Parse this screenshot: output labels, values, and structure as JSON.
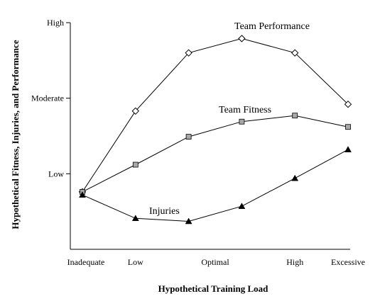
{
  "chart_data": {
    "type": "line",
    "title": "",
    "xlabel": "Hypothetical Training Load",
    "ylabel": "Hypothetical Fitness, Injuries, and Performance",
    "x_tick_labels": [
      "Inadequate",
      "Low",
      "Optimal",
      "High",
      "Excessive"
    ],
    "x_tick_positions": [
      0,
      1,
      2.5,
      4,
      5
    ],
    "y_tick_labels": [
      "Low",
      "Moderate",
      "High"
    ],
    "y_tick_positions": [
      1,
      2,
      3
    ],
    "xlim": [
      0,
      5
    ],
    "ylim": [
      0,
      3
    ],
    "grid": false,
    "legend": "none",
    "series": [
      {
        "name": "Team Performance",
        "marker": "open-diamond",
        "color": "#000000",
        "x": [
          0,
          1,
          2,
          3,
          4,
          5
        ],
        "y": [
          0.76,
          1.83,
          2.6,
          2.79,
          2.6,
          1.92
        ]
      },
      {
        "name": "Team Fitness",
        "marker": "gray-square",
        "color": "#000000",
        "x": [
          0,
          1,
          2,
          3,
          4,
          5
        ],
        "y": [
          0.76,
          1.12,
          1.49,
          1.69,
          1.77,
          1.62
        ]
      },
      {
        "name": "Injuries",
        "marker": "filled-triangle",
        "color": "#000000",
        "x": [
          0,
          1,
          2,
          3,
          4,
          5
        ],
        "y": [
          0.72,
          0.41,
          0.37,
          0.57,
          0.94,
          1.32
        ]
      }
    ]
  }
}
